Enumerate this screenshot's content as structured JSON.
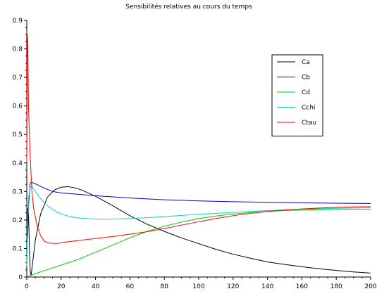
{
  "chart_data": {
    "type": "line",
    "title": "Sensibilités relatives au cours du temps",
    "xlabel": "",
    "ylabel": "",
    "xlim": [
      0,
      200
    ],
    "ylim": [
      0,
      0.9
    ],
    "xticks": [
      0,
      20,
      40,
      60,
      80,
      100,
      120,
      140,
      160,
      180,
      200
    ],
    "yticks": [
      0,
      0.1,
      0.2,
      0.3,
      0.4,
      0.5,
      0.6,
      0.7,
      0.8,
      0.9
    ],
    "grid": false,
    "legend_position": "top-right",
    "series": [
      {
        "name": "Ca",
        "color": "#000000",
        "points": [
          [
            0,
            0.17
          ],
          [
            0.5,
            0.24
          ],
          [
            1,
            0.22
          ],
          [
            1.5,
            0.12
          ],
          [
            2,
            0.02
          ],
          [
            2.5,
            0.005
          ],
          [
            3,
            0.03
          ],
          [
            5,
            0.13
          ],
          [
            8,
            0.22
          ],
          [
            12,
            0.28
          ],
          [
            16,
            0.305
          ],
          [
            20,
            0.315
          ],
          [
            24,
            0.317
          ],
          [
            28,
            0.313
          ],
          [
            32,
            0.305
          ],
          [
            40,
            0.283
          ],
          [
            50,
            0.25
          ],
          [
            60,
            0.215
          ],
          [
            70,
            0.185
          ],
          [
            80,
            0.16
          ],
          [
            90,
            0.137
          ],
          [
            100,
            0.117
          ],
          [
            110,
            0.097
          ],
          [
            120,
            0.08
          ],
          [
            130,
            0.066
          ],
          [
            140,
            0.053
          ],
          [
            150,
            0.044
          ],
          [
            160,
            0.036
          ],
          [
            170,
            0.029
          ],
          [
            180,
            0.023
          ],
          [
            190,
            0.018
          ],
          [
            200,
            0.014
          ]
        ]
      },
      {
        "name": "Cb",
        "color": "#0000cc",
        "points": [
          [
            0,
            0.165
          ],
          [
            0.5,
            0.14
          ],
          [
            1,
            0.25
          ],
          [
            2,
            0.33
          ],
          [
            3,
            0.332
          ],
          [
            6,
            0.324
          ],
          [
            10,
            0.312
          ],
          [
            15,
            0.3
          ],
          [
            20,
            0.295
          ],
          [
            30,
            0.29
          ],
          [
            40,
            0.285
          ],
          [
            50,
            0.281
          ],
          [
            60,
            0.277
          ],
          [
            80,
            0.271
          ],
          [
            100,
            0.267
          ],
          [
            120,
            0.264
          ],
          [
            140,
            0.262
          ],
          [
            160,
            0.26
          ],
          [
            180,
            0.259
          ],
          [
            200,
            0.258
          ]
        ]
      },
      {
        "name": "Cd",
        "color": "#00cc00",
        "points": [
          [
            0,
            0.0
          ],
          [
            2,
            0.005
          ],
          [
            5,
            0.012
          ],
          [
            10,
            0.022
          ],
          [
            20,
            0.042
          ],
          [
            30,
            0.062
          ],
          [
            40,
            0.087
          ],
          [
            50,
            0.112
          ],
          [
            60,
            0.138
          ],
          [
            70,
            0.16
          ],
          [
            80,
            0.178
          ],
          [
            90,
            0.193
          ],
          [
            100,
            0.205
          ],
          [
            110,
            0.214
          ],
          [
            120,
            0.221
          ],
          [
            130,
            0.226
          ],
          [
            140,
            0.23
          ],
          [
            150,
            0.233
          ],
          [
            160,
            0.235
          ],
          [
            170,
            0.236
          ],
          [
            180,
            0.237
          ],
          [
            190,
            0.238
          ],
          [
            200,
            0.238
          ]
        ]
      },
      {
        "name": "Cchi",
        "color": "#00d5d5",
        "points": [
          [
            0,
            0.04
          ],
          [
            0.5,
            0.18
          ],
          [
            1,
            0.28
          ],
          [
            2,
            0.315
          ],
          [
            3,
            0.318
          ],
          [
            5,
            0.3
          ],
          [
            8,
            0.275
          ],
          [
            12,
            0.25
          ],
          [
            16,
            0.233
          ],
          [
            20,
            0.221
          ],
          [
            25,
            0.212
          ],
          [
            30,
            0.207
          ],
          [
            40,
            0.203
          ],
          [
            50,
            0.203
          ],
          [
            60,
            0.205
          ],
          [
            70,
            0.208
          ],
          [
            80,
            0.212
          ],
          [
            90,
            0.216
          ],
          [
            100,
            0.22
          ],
          [
            110,
            0.223
          ],
          [
            120,
            0.227
          ],
          [
            140,
            0.233
          ],
          [
            160,
            0.238
          ],
          [
            180,
            0.241
          ],
          [
            200,
            0.243
          ]
        ]
      },
      {
        "name": "Ctau",
        "color": "#ff0000",
        "points": [
          [
            0,
            0.4
          ],
          [
            0.3,
            0.85
          ],
          [
            0.6,
            0.82
          ],
          [
            1,
            0.6
          ],
          [
            2,
            0.42
          ],
          [
            3,
            0.3
          ],
          [
            4,
            0.24
          ],
          [
            6,
            0.18
          ],
          [
            8,
            0.145
          ],
          [
            10,
            0.127
          ],
          [
            12,
            0.12
          ],
          [
            15,
            0.118
          ],
          [
            18,
            0.118
          ],
          [
            22,
            0.122
          ],
          [
            30,
            0.128
          ],
          [
            40,
            0.135
          ],
          [
            50,
            0.142
          ],
          [
            60,
            0.15
          ],
          [
            70,
            0.159
          ],
          [
            80,
            0.17
          ],
          [
            90,
            0.182
          ],
          [
            100,
            0.194
          ],
          [
            110,
            0.205
          ],
          [
            120,
            0.215
          ],
          [
            130,
            0.223
          ],
          [
            140,
            0.23
          ],
          [
            150,
            0.235
          ],
          [
            160,
            0.239
          ],
          [
            170,
            0.242
          ],
          [
            180,
            0.244
          ],
          [
            190,
            0.246
          ],
          [
            200,
            0.247
          ]
        ]
      }
    ]
  }
}
